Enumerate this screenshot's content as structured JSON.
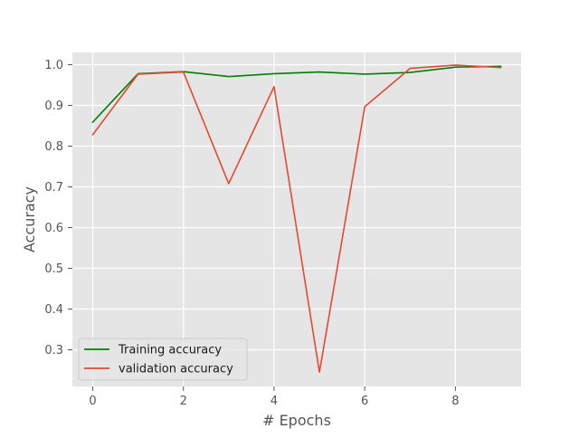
{
  "chart_data": {
    "type": "line",
    "title": "",
    "xlabel": "# Epochs",
    "ylabel": "Accuracy",
    "x": [
      0,
      1,
      2,
      3,
      4,
      5,
      6,
      7,
      8,
      9
    ],
    "xlim": [
      -0.45,
      9.45
    ],
    "ylim": [
      0.21,
      1.03
    ],
    "xticks": [
      0,
      2,
      4,
      6,
      8
    ],
    "yticks": [
      0.3,
      0.4,
      0.5,
      0.6,
      0.7,
      0.8,
      0.9,
      1.0
    ],
    "xtick_labels": [
      "0",
      "2",
      "4",
      "6",
      "8"
    ],
    "ytick_labels": [
      "0.3",
      "0.4",
      "0.5",
      "0.6",
      "0.7",
      "0.8",
      "0.9",
      "1.0"
    ],
    "grid": true,
    "legend_position": "lower-left",
    "background": "#e5e5e5",
    "series": [
      {
        "name": "Training accuracy",
        "color": "#008000",
        "values": [
          0.859,
          0.978,
          0.983,
          0.971,
          0.978,
          0.982,
          0.977,
          0.981,
          0.994,
          0.996
        ]
      },
      {
        "name": "validation accuracy",
        "color": "#e24a33",
        "values": [
          0.828,
          0.977,
          0.982,
          0.708,
          0.946,
          0.245,
          0.897,
          0.991,
          0.999,
          0.993
        ]
      }
    ]
  }
}
